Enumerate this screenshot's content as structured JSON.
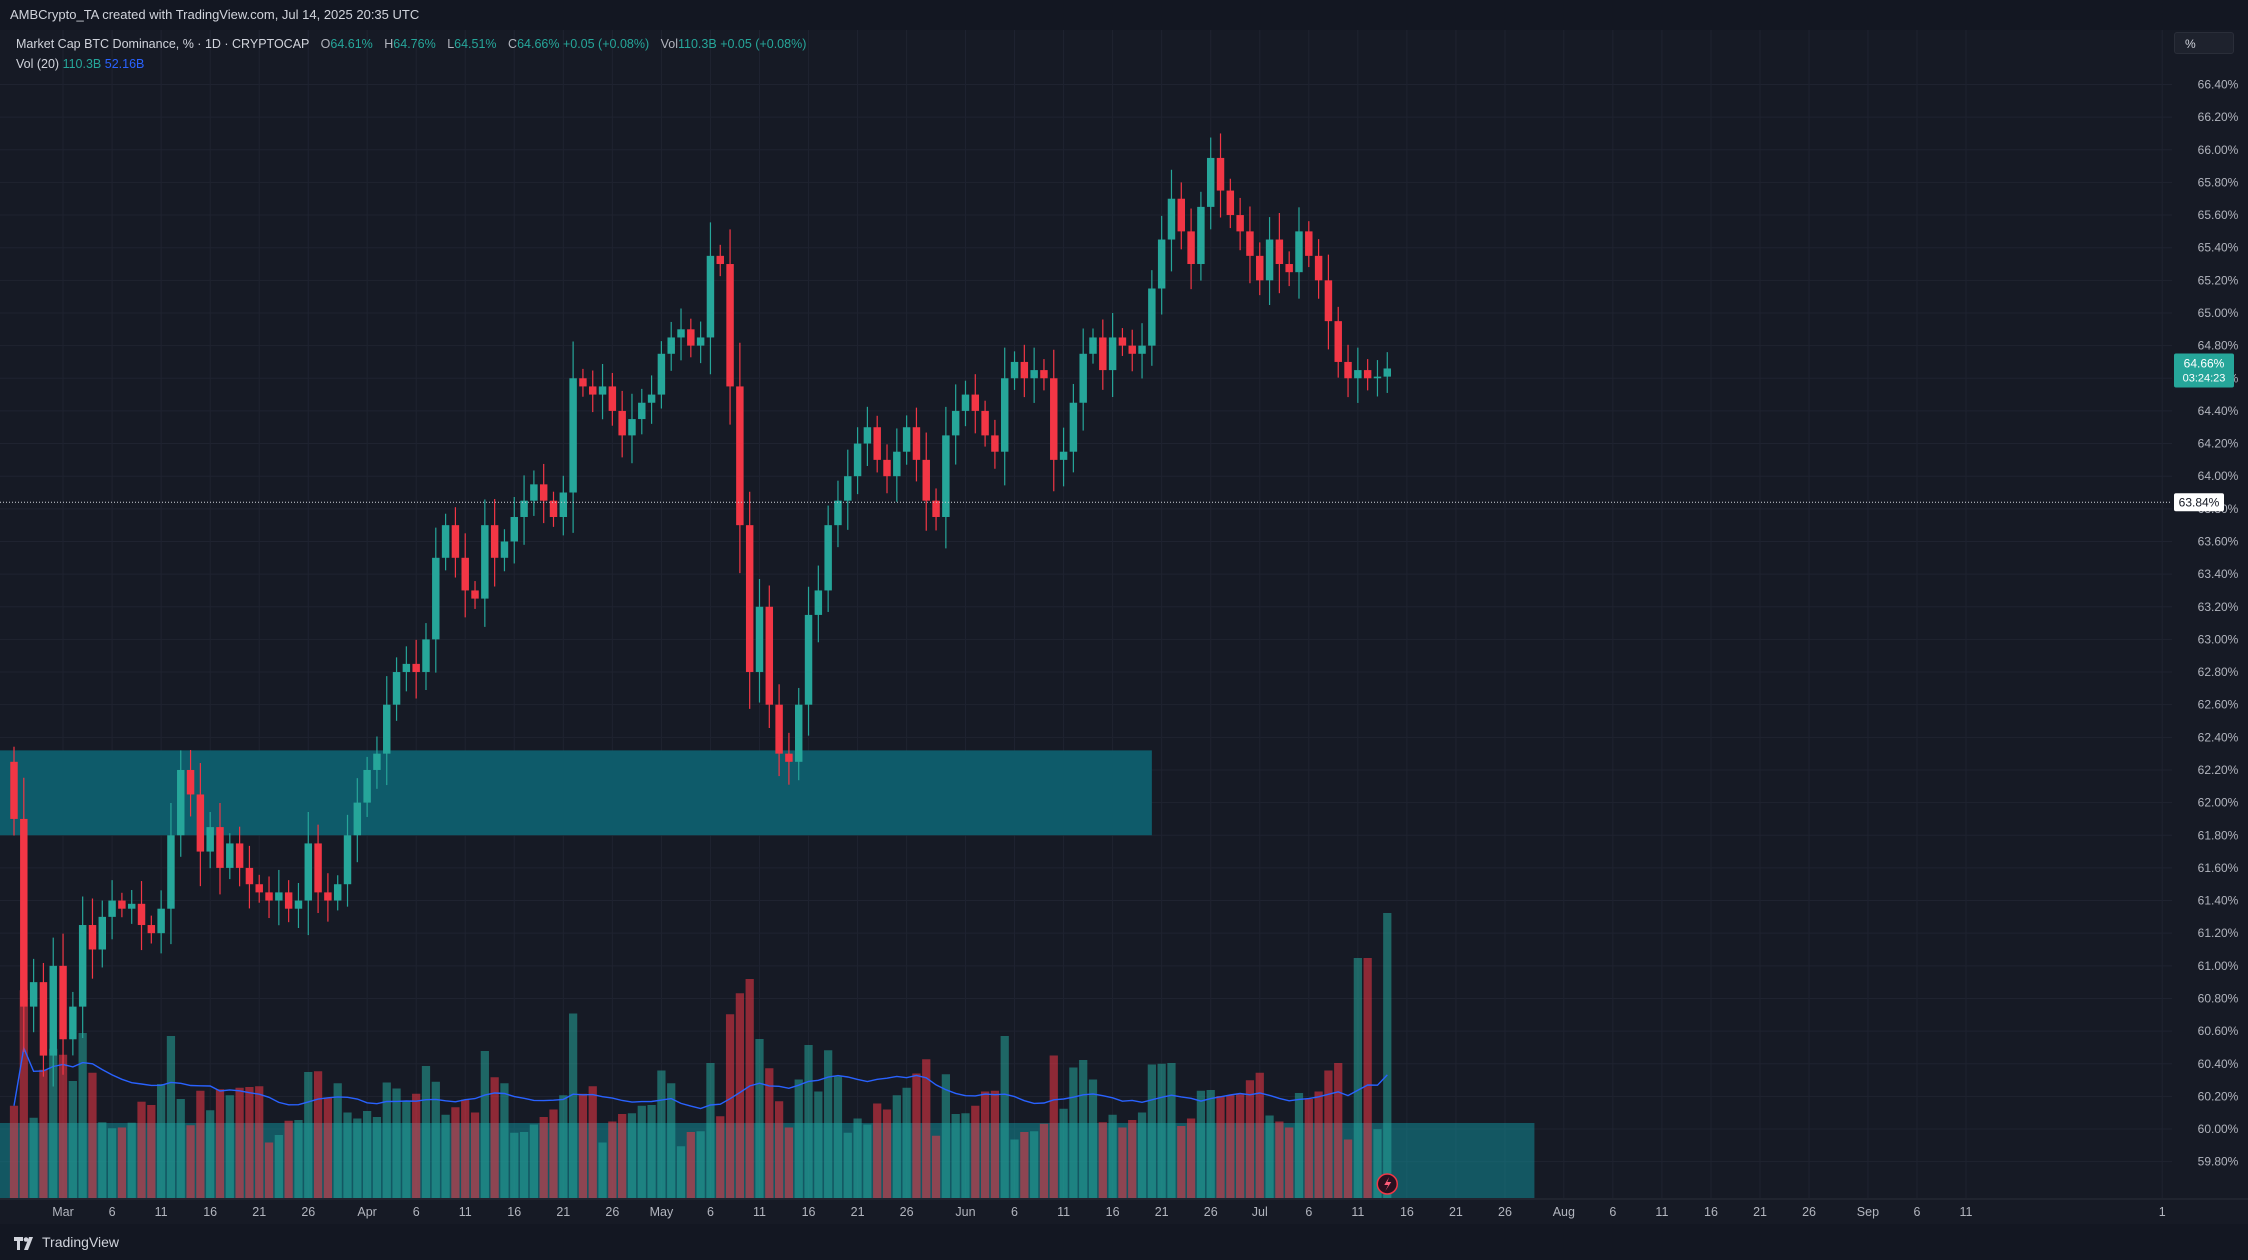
{
  "header": {
    "attribution": "AMBCrypto_TA created with TradingView.com, Jul 14, 2025 20:35 UTC"
  },
  "legend": {
    "symbol": "Market Cap BTC Dominance, % · 1D · CRYPTOCAP",
    "o_label": "O",
    "o_value": "64.61%",
    "h_label": "H",
    "h_value": "64.76%",
    "l_label": "L",
    "l_value": "64.51%",
    "c_label": "C",
    "c_value": "64.66%",
    "change": "+0.05 (+0.08%)",
    "vol_label": "Vol",
    "vol_value": "110.3B",
    "vol_change": "+0.05 (+0.08%)",
    "vol20_label": "Vol (20)",
    "vol20_value": "110.3B",
    "vol20_ma": "52.16B"
  },
  "scale_button": "%",
  "footer": {
    "brand": "TradingView"
  },
  "colors": {
    "background": "#161a25",
    "up": "#26a69a",
    "down": "#f23645",
    "zone": "#0e5f6e",
    "ma": "#2962ff",
    "grid": "#1f2330"
  },
  "chart_data": {
    "type": "candlestick",
    "title": "Market Cap BTC Dominance, % · 1D · CRYPTOCAP",
    "y_unit": "%",
    "ylim": [
      59.7,
      66.55
    ],
    "y_ticks": [
      "59.80%",
      "60.00%",
      "60.20%",
      "60.40%",
      "60.60%",
      "60.80%",
      "61.00%",
      "61.20%",
      "61.40%",
      "61.60%",
      "61.80%",
      "62.00%",
      "62.20%",
      "62.40%",
      "62.60%",
      "62.80%",
      "63.00%",
      "63.20%",
      "63.40%",
      "63.60%",
      "63.80%",
      "64.00%",
      "64.20%",
      "64.40%",
      "64.60%",
      "64.80%",
      "65.00%",
      "65.20%",
      "65.40%",
      "65.60%",
      "65.80%",
      "66.00%",
      "66.20%",
      "66.40%"
    ],
    "x_ticks": [
      "Mar",
      "6",
      "11",
      "16",
      "21",
      "26",
      "Apr",
      "6",
      "11",
      "16",
      "21",
      "26",
      "May",
      "6",
      "11",
      "16",
      "21",
      "26",
      "Jun",
      "6",
      "11",
      "16",
      "21",
      "26",
      "Jul",
      "6",
      "11",
      "16",
      "21",
      "26",
      "Aug",
      "6",
      "11",
      "16",
      "21",
      "26",
      "Sep",
      "6",
      "11",
      "1"
    ],
    "x_tick_dates": [
      "2025-03-01",
      "2025-03-06",
      "2025-03-11",
      "2025-03-16",
      "2025-03-21",
      "2025-03-26",
      "2025-04-01",
      "2025-04-06",
      "2025-04-11",
      "2025-04-16",
      "2025-04-21",
      "2025-04-26",
      "2025-05-01",
      "2025-05-06",
      "2025-05-11",
      "2025-05-16",
      "2025-05-21",
      "2025-05-26",
      "2025-06-01",
      "2025-06-06",
      "2025-06-11",
      "2025-06-16",
      "2025-06-21",
      "2025-06-26",
      "2025-07-01",
      "2025-07-06",
      "2025-07-11",
      "2025-07-16",
      "2025-07-21",
      "2025-07-26",
      "2025-08-01",
      "2025-08-06",
      "2025-08-11",
      "2025-08-16",
      "2025-08-21",
      "2025-08-26",
      "2025-09-01",
      "2025-09-06",
      "2025-09-11",
      "2025-10-01"
    ],
    "date_range": [
      "2025-02-24",
      "2025-10-02"
    ],
    "closes": [
      [
        "2025-02-24",
        61.9
      ],
      [
        "2025-02-25",
        60.75
      ],
      [
        "2025-02-26",
        60.9
      ],
      [
        "2025-02-27",
        60.45
      ],
      [
        "2025-02-28",
        61.0
      ],
      [
        "2025-03-01",
        60.55
      ],
      [
        "2025-03-02",
        60.75
      ],
      [
        "2025-03-03",
        61.25
      ],
      [
        "2025-03-04",
        61.1
      ],
      [
        "2025-03-05",
        61.3
      ],
      [
        "2025-03-06",
        61.4
      ],
      [
        "2025-03-07",
        61.35
      ],
      [
        "2025-03-08",
        61.38
      ],
      [
        "2025-03-09",
        61.25
      ],
      [
        "2025-03-10",
        61.2
      ],
      [
        "2025-03-11",
        61.35
      ],
      [
        "2025-03-12",
        61.8
      ],
      [
        "2025-03-13",
        62.2
      ],
      [
        "2025-03-14",
        62.05
      ],
      [
        "2025-03-15",
        61.7
      ],
      [
        "2025-03-16",
        61.85
      ],
      [
        "2025-03-17",
        61.6
      ],
      [
        "2025-03-18",
        61.75
      ],
      [
        "2025-03-19",
        61.6
      ],
      [
        "2025-03-20",
        61.5
      ],
      [
        "2025-03-21",
        61.45
      ],
      [
        "2025-03-22",
        61.4
      ],
      [
        "2025-03-23",
        61.45
      ],
      [
        "2025-03-24",
        61.35
      ],
      [
        "2025-03-25",
        61.4
      ],
      [
        "2025-03-26",
        61.75
      ],
      [
        "2025-03-27",
        61.45
      ],
      [
        "2025-03-28",
        61.4
      ],
      [
        "2025-03-29",
        61.5
      ],
      [
        "2025-03-30",
        61.8
      ],
      [
        "2025-03-31",
        62.0
      ],
      [
        "2025-04-01",
        62.2
      ],
      [
        "2025-04-02",
        62.3
      ],
      [
        "2025-04-03",
        62.6
      ],
      [
        "2025-04-04",
        62.8
      ],
      [
        "2025-04-05",
        62.85
      ],
      [
        "2025-04-06",
        62.8
      ],
      [
        "2025-04-07",
        63.0
      ],
      [
        "2025-04-08",
        63.5
      ],
      [
        "2025-04-09",
        63.7
      ],
      [
        "2025-04-10",
        63.5
      ],
      [
        "2025-04-11",
        63.3
      ],
      [
        "2025-04-12",
        63.25
      ],
      [
        "2025-04-13",
        63.7
      ],
      [
        "2025-04-14",
        63.5
      ],
      [
        "2025-04-15",
        63.6
      ],
      [
        "2025-04-16",
        63.75
      ],
      [
        "2025-04-17",
        63.85
      ],
      [
        "2025-04-18",
        63.95
      ],
      [
        "2025-04-19",
        63.85
      ],
      [
        "2025-04-20",
        63.75
      ],
      [
        "2025-04-21",
        63.9
      ],
      [
        "2025-04-22",
        64.6
      ],
      [
        "2025-04-23",
        64.55
      ],
      [
        "2025-04-24",
        64.5
      ],
      [
        "2025-04-25",
        64.55
      ],
      [
        "2025-04-26",
        64.4
      ],
      [
        "2025-04-27",
        64.25
      ],
      [
        "2025-04-28",
        64.35
      ],
      [
        "2025-04-29",
        64.45
      ],
      [
        "2025-04-30",
        64.5
      ],
      [
        "2025-05-01",
        64.75
      ],
      [
        "2025-05-02",
        64.85
      ],
      [
        "2025-05-03",
        64.9
      ],
      [
        "2025-05-04",
        64.8
      ],
      [
        "2025-05-05",
        64.85
      ],
      [
        "2025-05-06",
        65.35
      ],
      [
        "2025-05-07",
        65.3
      ],
      [
        "2025-05-08",
        64.55
      ],
      [
        "2025-05-09",
        63.7
      ],
      [
        "2025-05-10",
        62.8
      ],
      [
        "2025-05-11",
        63.2
      ],
      [
        "2025-05-12",
        62.6
      ],
      [
        "2025-05-13",
        62.3
      ],
      [
        "2025-05-14",
        62.25
      ],
      [
        "2025-05-15",
        62.6
      ],
      [
        "2025-05-16",
        63.15
      ],
      [
        "2025-05-17",
        63.3
      ],
      [
        "2025-05-18",
        63.7
      ],
      [
        "2025-05-19",
        63.85
      ],
      [
        "2025-05-20",
        64.0
      ],
      [
        "2025-05-21",
        64.2
      ],
      [
        "2025-05-22",
        64.3
      ],
      [
        "2025-05-23",
        64.1
      ],
      [
        "2025-05-24",
        64.0
      ],
      [
        "2025-05-25",
        64.15
      ],
      [
        "2025-05-26",
        64.3
      ],
      [
        "2025-05-27",
        64.1
      ],
      [
        "2025-05-28",
        63.85
      ],
      [
        "2025-05-29",
        63.75
      ],
      [
        "2025-05-30",
        64.25
      ],
      [
        "2025-05-31",
        64.4
      ],
      [
        "2025-06-01",
        64.5
      ],
      [
        "2025-06-02",
        64.4
      ],
      [
        "2025-06-03",
        64.25
      ],
      [
        "2025-06-04",
        64.15
      ],
      [
        "2025-06-05",
        64.6
      ],
      [
        "2025-06-06",
        64.7
      ],
      [
        "2025-06-07",
        64.6
      ],
      [
        "2025-06-08",
        64.65
      ],
      [
        "2025-06-09",
        64.6
      ],
      [
        "2025-06-10",
        64.1
      ],
      [
        "2025-06-11",
        64.15
      ],
      [
        "2025-06-12",
        64.45
      ],
      [
        "2025-06-13",
        64.75
      ],
      [
        "2025-06-14",
        64.85
      ],
      [
        "2025-06-15",
        64.65
      ],
      [
        "2025-06-16",
        64.85
      ],
      [
        "2025-06-17",
        64.8
      ],
      [
        "2025-06-18",
        64.75
      ],
      [
        "2025-06-19",
        64.8
      ],
      [
        "2025-06-20",
        65.15
      ],
      [
        "2025-06-21",
        65.45
      ],
      [
        "2025-06-22",
        65.7
      ],
      [
        "2025-06-23",
        65.5
      ],
      [
        "2025-06-24",
        65.3
      ],
      [
        "2025-06-25",
        65.65
      ],
      [
        "2025-06-26",
        65.95
      ],
      [
        "2025-06-27",
        65.75
      ],
      [
        "2025-06-28",
        65.6
      ],
      [
        "2025-06-29",
        65.5
      ],
      [
        "2025-06-30",
        65.35
      ],
      [
        "2025-07-01",
        65.2
      ],
      [
        "2025-07-02",
        65.45
      ],
      [
        "2025-07-03",
        65.3
      ],
      [
        "2025-07-04",
        65.25
      ],
      [
        "2025-07-05",
        65.5
      ],
      [
        "2025-07-06",
        65.35
      ],
      [
        "2025-07-07",
        65.2
      ],
      [
        "2025-07-08",
        64.95
      ],
      [
        "2025-07-09",
        64.7
      ],
      [
        "2025-07-10",
        64.6
      ],
      [
        "2025-07-11",
        64.65
      ],
      [
        "2025-07-12",
        64.6
      ],
      [
        "2025-07-13",
        64.61
      ],
      [
        "2025-07-14",
        64.66
      ]
    ],
    "last_candle": {
      "date": "2025-07-14",
      "open": 64.61,
      "high": 64.76,
      "low": 64.51,
      "close": 64.66
    },
    "price_label": "64.66%",
    "countdown": "03:24:23",
    "horizontal_line": {
      "value": 63.84,
      "label": "63.84%"
    },
    "support_zone": {
      "from": 61.8,
      "to": 62.32,
      "start": "2025-02-24",
      "end": "2025-06-20"
    },
    "volume_zone": {
      "start": "2025-02-24",
      "end": "2025-07-29"
    },
    "volume": {
      "name": "Vol",
      "ma_length": 20,
      "last": "110.3B",
      "ma_last": "52.16B"
    },
    "grid": true,
    "legend_position": "top-left"
  }
}
